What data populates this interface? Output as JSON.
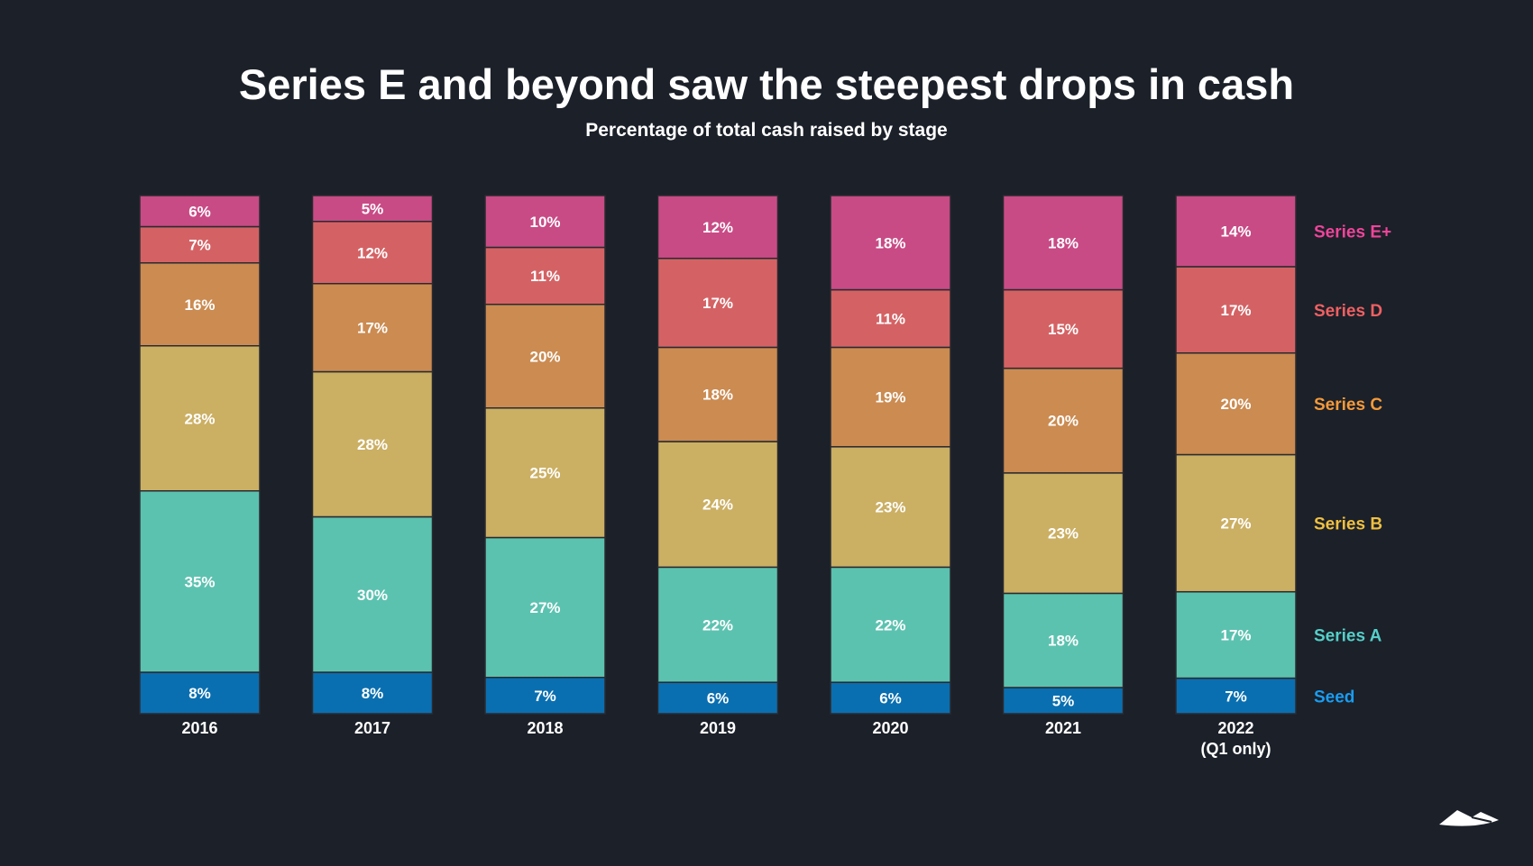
{
  "chart_data": {
    "type": "bar",
    "stacked": true,
    "title": "Series E and beyond saw the steepest drops in cash",
    "subtitle": "Percentage of total cash raised by stage",
    "categories": [
      [
        "2016"
      ],
      [
        "2017"
      ],
      [
        "2018"
      ],
      [
        "2019"
      ],
      [
        "2020"
      ],
      [
        "2021"
      ],
      [
        "2022",
        "(Q1 only)"
      ]
    ],
    "ylim": [
      0,
      100
    ],
    "grid": false,
    "legend_placement": "right",
    "series": [
      {
        "name": "Seed",
        "values": [
          8,
          8,
          7,
          6,
          6,
          5,
          7
        ],
        "color": "#0a6fb0",
        "label_color": "#1a9cf0"
      },
      {
        "name": "Series A",
        "values": [
          35,
          30,
          27,
          22,
          22,
          18,
          17
        ],
        "color": "#5cc2b0",
        "label_color": "#55cfc8"
      },
      {
        "name": "Series B",
        "values": [
          28,
          28,
          25,
          24,
          23,
          23,
          27
        ],
        "color": "#cbaf63",
        "label_color": "#f0c040"
      },
      {
        "name": "Series C",
        "values": [
          16,
          17,
          20,
          18,
          19,
          20,
          20
        ],
        "color": "#cb8b51",
        "label_color": "#f59a3a"
      },
      {
        "name": "Series D",
        "values": [
          7,
          12,
          11,
          17,
          11,
          15,
          17
        ],
        "color": "#d46264",
        "label_color": "#f06062"
      },
      {
        "name": "Series E+",
        "values": [
          6,
          5,
          10,
          12,
          18,
          18,
          14
        ],
        "color": "#c84b85",
        "label_color": "#f0449a"
      }
    ],
    "value_suffix": "%"
  },
  "logo": {
    "icon": "mountain-logo-icon"
  }
}
